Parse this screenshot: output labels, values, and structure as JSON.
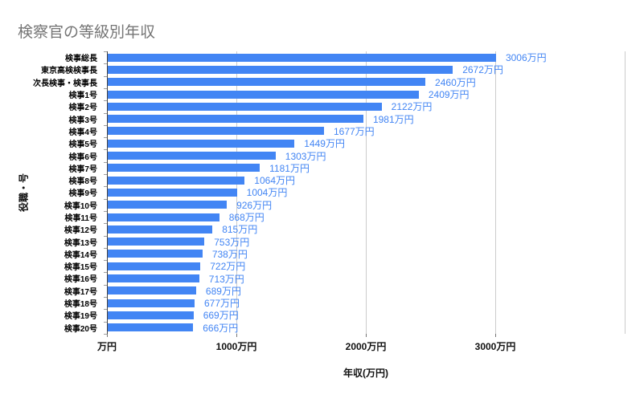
{
  "title": "検察官の等級別年収",
  "colors": {
    "bar": "#4285f4",
    "value_label": "#4285f4",
    "title_text": "#757575",
    "gridline": "#cccccc",
    "axis_line": "#424242",
    "axis_text": "#111111",
    "background": "#ffffff"
  },
  "chart_data": {
    "type": "bar",
    "orientation": "horizontal",
    "title": "検察官の等級別年収",
    "xlabel": "年収(万円)",
    "ylabel": "役職・号",
    "xlim": [
      0,
      4000
    ],
    "grid": true,
    "legend_position": "none",
    "gridline_values": [
      0,
      1000,
      2000,
      3000,
      4000
    ],
    "x_ticks": [
      {
        "value": 0,
        "label": "万円"
      },
      {
        "value": 1000,
        "label": "1000万円"
      },
      {
        "value": 2000,
        "label": "2000万円"
      },
      {
        "value": 3000,
        "label": "3000万円"
      }
    ],
    "unit": "万円",
    "categories": [
      "検事総長",
      "東京高検検事長",
      "次長検事・検事長",
      "検事1号",
      "検事2号",
      "検事3号",
      "検事4号",
      "検事5号",
      "検事6号",
      "検事7号",
      "検事8号",
      "検事9号",
      "検事10号",
      "検事11号",
      "検事12号",
      "検事13号",
      "検事14号",
      "検事15号",
      "検事16号",
      "検事17号",
      "検事18号",
      "検事19号",
      "検事20号"
    ],
    "values": [
      3006,
      2672,
      2460,
      2409,
      2122,
      1981,
      1677,
      1449,
      1303,
      1181,
      1064,
      1004,
      926,
      868,
      815,
      753,
      738,
      722,
      713,
      689,
      677,
      669,
      666
    ],
    "value_labels": [
      "3006万円",
      "2672万円",
      "2460万円",
      "2409万円",
      "2122万円",
      "1981万円",
      "1677万円",
      "1449万円",
      "1303万円",
      "1181万円",
      "1064万円",
      "1004万円",
      "926万円",
      "868万円",
      "815万円",
      "753万円",
      "738万円",
      "722万円",
      "713万円",
      "689万円",
      "677万円",
      "669万円",
      "666万円"
    ]
  }
}
